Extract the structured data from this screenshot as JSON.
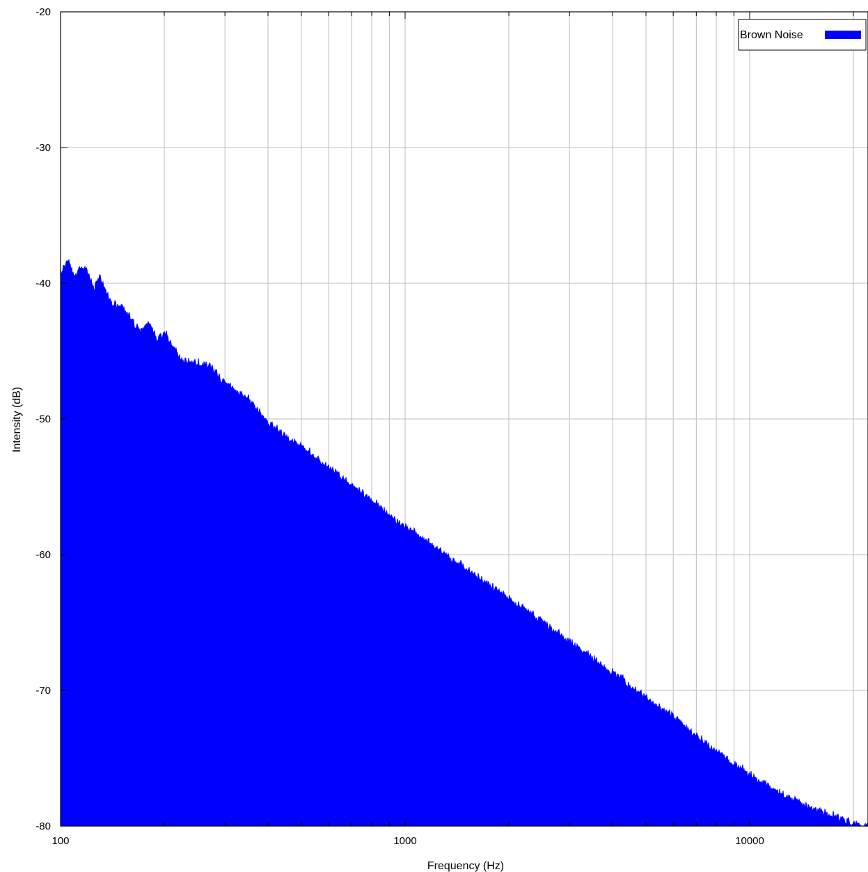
{
  "chart_data": {
    "type": "area",
    "xlabel": "Frequency (Hz)",
    "ylabel": "Intensity (dB)",
    "x_scale": "log",
    "xlim": [
      100,
      22050
    ],
    "ylim": [
      -80,
      -20
    ],
    "x_ticks": [
      {
        "value": 100,
        "label": "100"
      },
      {
        "value": 1000,
        "label": "1000"
      },
      {
        "value": 10000,
        "label": "10000"
      }
    ],
    "y_ticks": [
      {
        "value": -20,
        "label": "-20"
      },
      {
        "value": -30,
        "label": "-30"
      },
      {
        "value": -40,
        "label": "-40"
      },
      {
        "value": -50,
        "label": "-50"
      },
      {
        "value": -60,
        "label": "-60"
      },
      {
        "value": -70,
        "label": "-70"
      },
      {
        "value": -80,
        "label": "-80"
      }
    ],
    "grid": true,
    "legend": {
      "position": "top-right",
      "entries": [
        {
          "label": "Brown Noise",
          "color": "#0000ff"
        }
      ]
    },
    "series": [
      {
        "name": "Brown Noise",
        "color": "#0000ff",
        "fill": true,
        "x": [
          100,
          105,
          110,
          115,
          120,
          125,
          130,
          140,
          150,
          160,
          170,
          180,
          190,
          200,
          225,
          250,
          275,
          300,
          350,
          400,
          450,
          500,
          600,
          700,
          800,
          900,
          1000,
          1200,
          1500,
          2000,
          2500,
          3000,
          4000,
          5000,
          6000,
          7000,
          8000,
          9000,
          10000,
          12000,
          15000,
          18000,
          20000,
          22050
        ],
        "y": [
          -39.2,
          -38.4,
          -39.6,
          -38.7,
          -39.1,
          -40.4,
          -39.5,
          -41.5,
          -41.6,
          -42.5,
          -43.6,
          -42.8,
          -44.2,
          -43.6,
          -45.7,
          -45.9,
          -46.2,
          -47.3,
          -48.5,
          -50.2,
          -51.3,
          -52.0,
          -53.6,
          -54.9,
          -56.0,
          -57.0,
          -58.0,
          -59.3,
          -61.0,
          -63.2,
          -64.9,
          -66.4,
          -68.7,
          -70.5,
          -71.9,
          -73.3,
          -74.5,
          -75.4,
          -76.2,
          -77.5,
          -78.6,
          -79.4,
          -79.8,
          -80.0
        ]
      }
    ]
  }
}
